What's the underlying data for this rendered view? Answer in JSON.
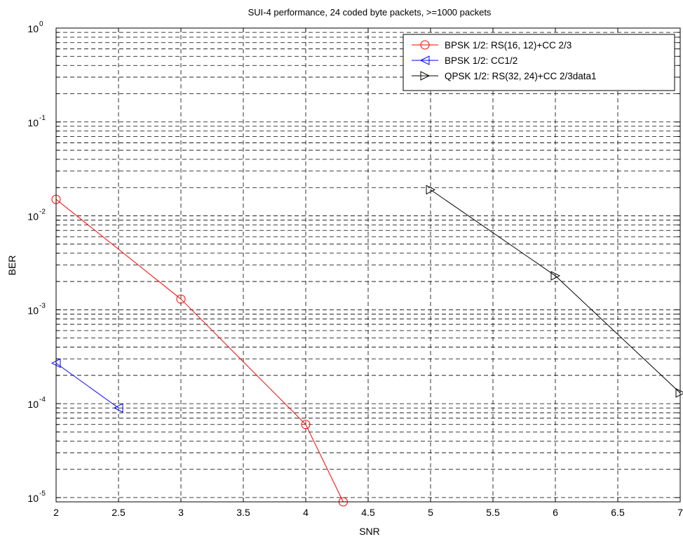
{
  "chart_data": {
    "type": "line",
    "title": "SUI-4 performance, 24 coded byte packets, >=1000 packets",
    "xlabel": "SNR",
    "ylabel": "BER",
    "xlim": [
      2,
      7
    ],
    "ylim": [
      9e-06,
      1
    ],
    "yscale": "log",
    "grid": true,
    "legend_position": "top-right",
    "xticks": [
      "2",
      "2.5",
      "3",
      "3.5",
      "4",
      "4.5",
      "5",
      "5.5",
      "6",
      "6.5",
      "7"
    ],
    "yticks": [
      {
        "base": "10",
        "exp": "0"
      },
      {
        "base": "10",
        "exp": "-1"
      },
      {
        "base": "10",
        "exp": "-2"
      },
      {
        "base": "10",
        "exp": "-3"
      },
      {
        "base": "10",
        "exp": "-4"
      },
      {
        "base": "10",
        "exp": "-5"
      }
    ],
    "series": [
      {
        "name": "BPSK 1/2: RS(16, 12)+CC 2/3",
        "color": "#ff0000",
        "marker": "circle",
        "x": [
          2,
          3,
          4,
          4.3
        ],
        "y": [
          0.015,
          0.0013,
          6e-05,
          9e-06
        ]
      },
      {
        "name": "BPSK 1/2: CC1/2",
        "color": "#0000ff",
        "marker": "triangle-left",
        "x": [
          2,
          2.5
        ],
        "y": [
          0.00027,
          9e-05
        ]
      },
      {
        "name": "QPSK 1/2: RS(32, 24)+CC 2/3data1",
        "color": "#000000",
        "marker": "triangle-right",
        "x": [
          5,
          6,
          7
        ],
        "y": [
          0.019,
          0.0023,
          0.00013
        ]
      }
    ]
  }
}
